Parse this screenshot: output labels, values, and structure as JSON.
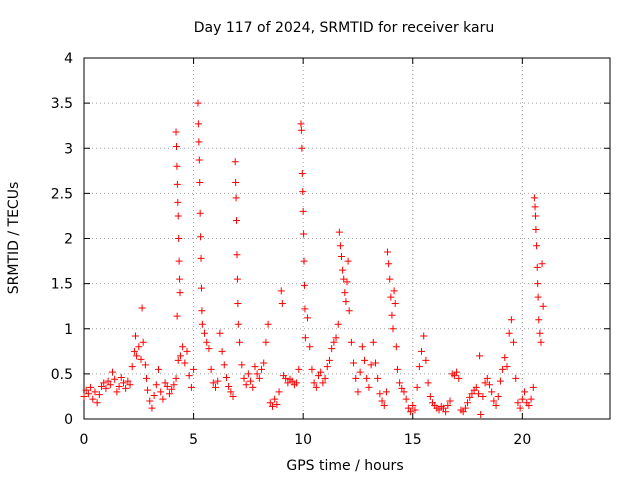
{
  "chart_data": {
    "type": "scatter",
    "title": "Day 117 of 2024, SRMTID for receiver karu",
    "xlabel": "GPS time / hours",
    "ylabel": "SRMTID / TECUs",
    "xlim": [
      0,
      24
    ],
    "ylim": [
      0,
      4
    ],
    "x_ticks": [
      0,
      5,
      10,
      15,
      20
    ],
    "x_tick_labels": [
      "0",
      "5",
      "10",
      "15",
      "20"
    ],
    "y_ticks": [
      0,
      0.5,
      1,
      1.5,
      2,
      2.5,
      3,
      3.5,
      4
    ],
    "y_tick_labels": [
      "0",
      "0.5",
      "1",
      "1.5",
      "2",
      "2.5",
      "3",
      "3.5",
      "4"
    ],
    "grid": true,
    "marker": "+",
    "marker_color": "#ff0000",
    "series": [
      {
        "name": "SRMTID",
        "points": [
          [
            0.0,
            0.25
          ],
          [
            0.1,
            0.32
          ],
          [
            0.2,
            0.28
          ],
          [
            0.3,
            0.35
          ],
          [
            0.4,
            0.22
          ],
          [
            0.5,
            0.3
          ],
          [
            0.6,
            0.18
          ],
          [
            0.7,
            0.27
          ],
          [
            0.8,
            0.36
          ],
          [
            0.9,
            0.4
          ],
          [
            1.0,
            0.34
          ],
          [
            1.1,
            0.42
          ],
          [
            1.2,
            0.38
          ],
          [
            1.3,
            0.52
          ],
          [
            1.4,
            0.44
          ],
          [
            1.5,
            0.3
          ],
          [
            1.6,
            0.36
          ],
          [
            1.7,
            0.46
          ],
          [
            1.8,
            0.4
          ],
          [
            1.9,
            0.34
          ],
          [
            2.0,
            0.42
          ],
          [
            2.1,
            0.38
          ],
          [
            2.2,
            0.58
          ],
          [
            2.3,
            0.75
          ],
          [
            2.35,
            0.92
          ],
          [
            2.4,
            0.7
          ],
          [
            2.5,
            0.8
          ],
          [
            2.6,
            0.66
          ],
          [
            2.65,
            1.23
          ],
          [
            2.7,
            0.85
          ],
          [
            2.8,
            0.6
          ],
          [
            2.85,
            0.45
          ],
          [
            2.9,
            0.32
          ],
          [
            3.0,
            0.2
          ],
          [
            3.1,
            0.12
          ],
          [
            3.2,
            0.26
          ],
          [
            3.3,
            0.38
          ],
          [
            3.4,
            0.55
          ],
          [
            3.5,
            0.3
          ],
          [
            3.6,
            0.22
          ],
          [
            3.7,
            0.4
          ],
          [
            3.8,
            0.36
          ],
          [
            3.9,
            0.28
          ],
          [
            4.0,
            0.33
          ],
          [
            4.1,
            0.38
          ],
          [
            4.2,
            0.45
          ],
          [
            4.25,
            1.14
          ],
          [
            4.3,
            0.65
          ],
          [
            4.2,
            3.18
          ],
          [
            4.22,
            3.02
          ],
          [
            4.24,
            2.8
          ],
          [
            4.26,
            2.6
          ],
          [
            4.28,
            2.4
          ],
          [
            4.3,
            2.25
          ],
          [
            4.32,
            2.0
          ],
          [
            4.34,
            1.75
          ],
          [
            4.36,
            1.55
          ],
          [
            4.38,
            1.4
          ],
          [
            4.4,
            0.7
          ],
          [
            4.5,
            0.8
          ],
          [
            4.6,
            0.62
          ],
          [
            4.7,
            0.75
          ],
          [
            4.8,
            0.48
          ],
          [
            4.9,
            0.35
          ],
          [
            5.0,
            0.55
          ],
          [
            5.2,
            3.5
          ],
          [
            5.22,
            3.27
          ],
          [
            5.24,
            3.07
          ],
          [
            5.26,
            2.87
          ],
          [
            5.28,
            2.62
          ],
          [
            5.3,
            2.28
          ],
          [
            5.32,
            2.02
          ],
          [
            5.34,
            1.78
          ],
          [
            5.36,
            1.45
          ],
          [
            5.38,
            1.2
          ],
          [
            5.4,
            1.05
          ],
          [
            5.5,
            0.95
          ],
          [
            5.6,
            0.85
          ],
          [
            5.7,
            0.78
          ],
          [
            5.8,
            0.55
          ],
          [
            5.9,
            0.4
          ],
          [
            6.0,
            0.35
          ],
          [
            6.1,
            0.42
          ],
          [
            6.2,
            0.95
          ],
          [
            6.3,
            0.75
          ],
          [
            6.4,
            0.6
          ],
          [
            6.5,
            0.46
          ],
          [
            6.6,
            0.36
          ],
          [
            6.7,
            0.3
          ],
          [
            6.8,
            0.25
          ],
          [
            6.9,
            2.85
          ],
          [
            6.92,
            2.62
          ],
          [
            6.94,
            2.45
          ],
          [
            6.96,
            2.2
          ],
          [
            6.98,
            1.82
          ],
          [
            7.0,
            1.55
          ],
          [
            7.02,
            1.28
          ],
          [
            7.04,
            1.05
          ],
          [
            7.1,
            0.85
          ],
          [
            7.2,
            0.6
          ],
          [
            7.3,
            0.45
          ],
          [
            7.4,
            0.38
          ],
          [
            7.5,
            0.5
          ],
          [
            7.6,
            0.42
          ],
          [
            7.7,
            0.35
          ],
          [
            7.8,
            0.58
          ],
          [
            7.9,
            0.5
          ],
          [
            8.0,
            0.45
          ],
          [
            8.1,
            0.55
          ],
          [
            8.2,
            0.62
          ],
          [
            8.3,
            0.85
          ],
          [
            8.4,
            1.05
          ],
          [
            8.5,
            0.18
          ],
          [
            8.6,
            0.14
          ],
          [
            8.7,
            0.22
          ],
          [
            8.8,
            0.16
          ],
          [
            8.9,
            0.3
          ],
          [
            9.0,
            1.42
          ],
          [
            9.05,
            1.28
          ],
          [
            9.1,
            0.48
          ],
          [
            9.2,
            0.45
          ],
          [
            9.3,
            0.4
          ],
          [
            9.4,
            0.44
          ],
          [
            9.5,
            0.42
          ],
          [
            9.6,
            0.38
          ],
          [
            9.7,
            0.4
          ],
          [
            9.8,
            0.55
          ],
          [
            9.9,
            3.27
          ],
          [
            9.92,
            3.2
          ],
          [
            9.94,
            3.0
          ],
          [
            9.96,
            2.72
          ],
          [
            9.98,
            2.52
          ],
          [
            10.0,
            2.3
          ],
          [
            10.02,
            2.05
          ],
          [
            10.04,
            1.75
          ],
          [
            10.06,
            1.48
          ],
          [
            10.08,
            1.22
          ],
          [
            10.1,
            0.9
          ],
          [
            10.2,
            1.12
          ],
          [
            10.3,
            0.8
          ],
          [
            10.4,
            0.55
          ],
          [
            10.5,
            0.4
          ],
          [
            10.6,
            0.35
          ],
          [
            10.7,
            0.48
          ],
          [
            10.8,
            0.52
          ],
          [
            10.9,
            0.4
          ],
          [
            11.0,
            0.45
          ],
          [
            11.1,
            0.58
          ],
          [
            11.2,
            0.65
          ],
          [
            11.3,
            0.78
          ],
          [
            11.4,
            0.85
          ],
          [
            11.5,
            0.9
          ],
          [
            11.6,
            1.05
          ],
          [
            11.65,
            2.07
          ],
          [
            11.7,
            1.92
          ],
          [
            11.75,
            1.8
          ],
          [
            11.8,
            1.65
          ],
          [
            11.85,
            1.55
          ],
          [
            11.9,
            1.4
          ],
          [
            11.95,
            1.3
          ],
          [
            12.0,
            1.52
          ],
          [
            12.05,
            1.75
          ],
          [
            12.1,
            1.2
          ],
          [
            12.2,
            0.85
          ],
          [
            12.3,
            0.62
          ],
          [
            12.4,
            0.45
          ],
          [
            12.5,
            0.3
          ],
          [
            12.6,
            0.52
          ],
          [
            12.7,
            0.8
          ],
          [
            12.8,
            0.65
          ],
          [
            12.9,
            0.45
          ],
          [
            13.0,
            0.35
          ],
          [
            13.1,
            0.6
          ],
          [
            13.2,
            0.85
          ],
          [
            13.3,
            0.62
          ],
          [
            13.4,
            0.45
          ],
          [
            13.5,
            0.28
          ],
          [
            13.6,
            0.2
          ],
          [
            13.7,
            0.15
          ],
          [
            13.8,
            0.3
          ],
          [
            13.85,
            1.85
          ],
          [
            13.9,
            1.72
          ],
          [
            13.95,
            1.55
          ],
          [
            14.0,
            1.35
          ],
          [
            14.05,
            1.15
          ],
          [
            14.1,
            1.0
          ],
          [
            14.15,
            1.42
          ],
          [
            14.2,
            1.28
          ],
          [
            14.25,
            0.8
          ],
          [
            14.3,
            0.55
          ],
          [
            14.4,
            0.4
          ],
          [
            14.5,
            0.34
          ],
          [
            14.6,
            0.3
          ],
          [
            14.7,
            0.22
          ],
          [
            14.8,
            0.12
          ],
          [
            14.9,
            0.08
          ],
          [
            15.0,
            0.15
          ],
          [
            15.1,
            0.1
          ],
          [
            15.2,
            0.35
          ],
          [
            15.3,
            0.58
          ],
          [
            15.4,
            0.75
          ],
          [
            15.5,
            0.92
          ],
          [
            15.6,
            0.65
          ],
          [
            15.7,
            0.4
          ],
          [
            15.8,
            0.25
          ],
          [
            15.9,
            0.18
          ],
          [
            16.0,
            0.15
          ],
          [
            16.1,
            0.12
          ],
          [
            16.2,
            0.1
          ],
          [
            16.3,
            0.14
          ],
          [
            16.4,
            0.12
          ],
          [
            16.5,
            0.08
          ],
          [
            16.6,
            0.15
          ],
          [
            16.7,
            0.2
          ],
          [
            16.8,
            0.5
          ],
          [
            16.9,
            0.48
          ],
          [
            17.0,
            0.52
          ],
          [
            17.1,
            0.45
          ],
          [
            17.2,
            0.1
          ],
          [
            17.3,
            0.08
          ],
          [
            17.4,
            0.12
          ],
          [
            17.5,
            0.18
          ],
          [
            17.6,
            0.24
          ],
          [
            17.7,
            0.28
          ],
          [
            17.8,
            0.32
          ],
          [
            17.9,
            0.35
          ],
          [
            18.0,
            0.28
          ],
          [
            18.05,
            0.7
          ],
          [
            18.1,
            0.05
          ],
          [
            18.2,
            0.25
          ],
          [
            18.3,
            0.4
          ],
          [
            18.4,
            0.45
          ],
          [
            18.5,
            0.38
          ],
          [
            18.6,
            0.3
          ],
          [
            18.7,
            0.2
          ],
          [
            18.8,
            0.15
          ],
          [
            18.9,
            0.25
          ],
          [
            19.0,
            0.42
          ],
          [
            19.1,
            0.55
          ],
          [
            19.2,
            0.68
          ],
          [
            19.3,
            0.58
          ],
          [
            19.4,
            0.95
          ],
          [
            19.5,
            1.1
          ],
          [
            19.6,
            0.85
          ],
          [
            19.7,
            0.45
          ],
          [
            19.8,
            0.18
          ],
          [
            19.9,
            0.12
          ],
          [
            20.0,
            0.22
          ],
          [
            20.1,
            0.3
          ],
          [
            20.2,
            0.18
          ],
          [
            20.3,
            0.15
          ],
          [
            20.4,
            0.22
          ],
          [
            20.5,
            0.35
          ],
          [
            20.55,
            2.45
          ],
          [
            20.58,
            2.35
          ],
          [
            20.6,
            2.25
          ],
          [
            20.62,
            2.1
          ],
          [
            20.65,
            1.92
          ],
          [
            20.68,
            1.68
          ],
          [
            20.7,
            1.5
          ],
          [
            20.72,
            1.35
          ],
          [
            20.75,
            1.1
          ],
          [
            20.8,
            0.95
          ],
          [
            20.85,
            0.85
          ],
          [
            20.9,
            1.72
          ],
          [
            20.95,
            1.25
          ]
        ]
      }
    ]
  }
}
